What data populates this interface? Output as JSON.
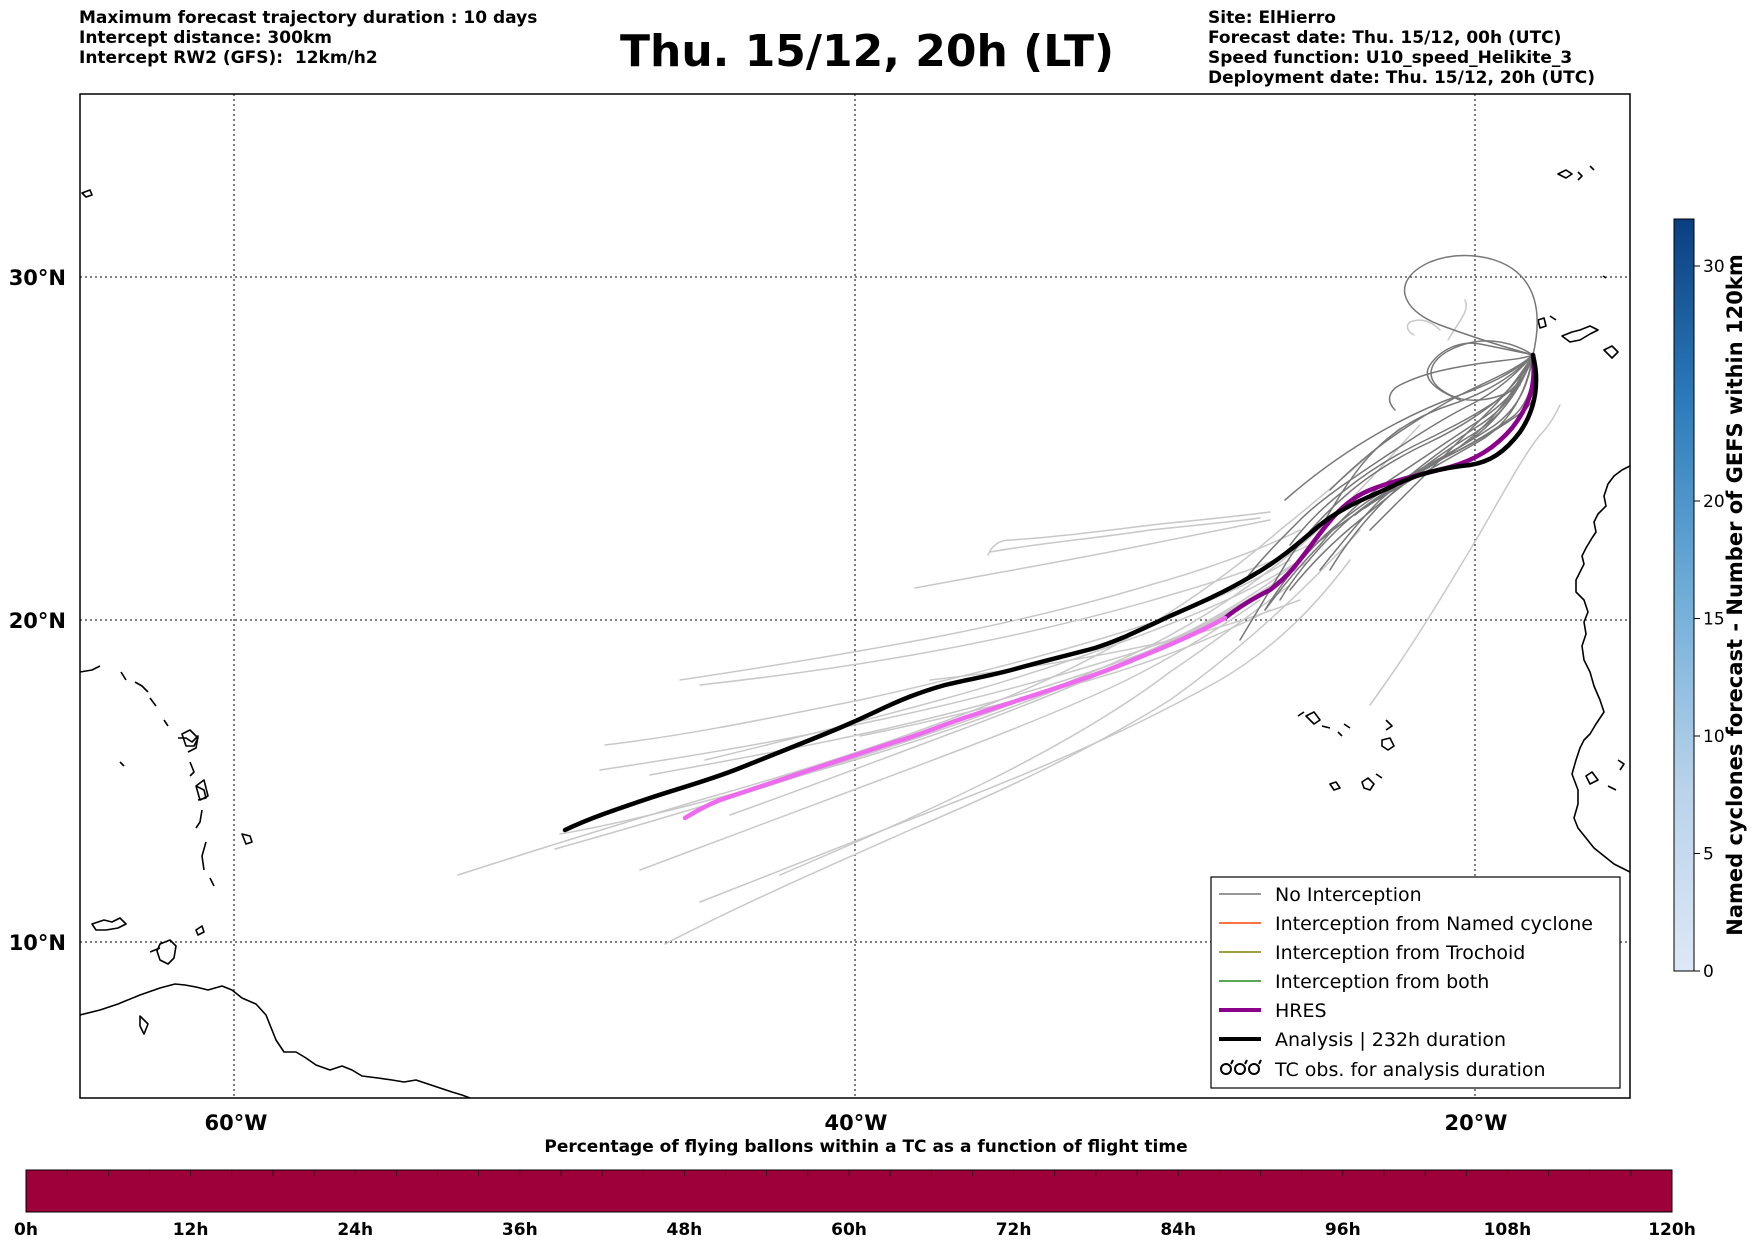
{
  "header": {
    "left_lines": [
      "Maximum forecast trajectory duration : 10 days",
      "Intercept distance: 300km",
      "Intercept RW2 (GFS):  12km/h2"
    ],
    "title": "Thu. 15/12, 20h (LT)",
    "right_lines": [
      "Site: ElHierro",
      "Forecast date: Thu. 15/12, 00h (UTC)",
      "Speed function: U10_speed_Helikite_3",
      "Deployment date: Thu. 15/12, 20h (UTC)"
    ]
  },
  "map": {
    "lat_labels": [
      "30°N",
      "20°N",
      "10°N"
    ],
    "lon_labels": [
      "60°W",
      "40°W",
      "20°W"
    ],
    "extent": {
      "lon_min": -65,
      "lon_max": -15,
      "lat_min": 5.5,
      "lat_max": 35
    }
  },
  "legend": {
    "items": [
      {
        "label": "No Interception",
        "color": "#777777"
      },
      {
        "label": "Interception from Named cyclone",
        "color": "#ff4500"
      },
      {
        "label": "Interception from Trochoid",
        "color": "#808000"
      },
      {
        "label": "Interception from both",
        "color": "#228b22"
      },
      {
        "label": "HRES",
        "color": "#8b008b"
      },
      {
        "label": "Analysis | 232h duration",
        "color": "#000000"
      },
      {
        "label": "TC obs. for analysis duration",
        "color": "#000000"
      }
    ]
  },
  "colorbar": {
    "label": "Named cyclones forecast - Number of GEFS within 120km",
    "ticks": [
      "0",
      "5",
      "10",
      "15",
      "20",
      "30"
    ],
    "min": 0,
    "max": 32
  },
  "timebar": {
    "title": "Percentage of flying ballons within a TC as a function of flight time",
    "ticks": [
      "0h",
      "12h",
      "24h",
      "36h",
      "48h",
      "60h",
      "72h",
      "84h",
      "96h",
      "108h",
      "120h"
    ],
    "fill_color": "#9e003a"
  },
  "colors": {
    "hres_thick": "#8b008b",
    "hres_light": "#ee6aee",
    "analysis": "#000000",
    "no_interception": "#777777",
    "ensemble_light": "#c8c8c8"
  }
}
